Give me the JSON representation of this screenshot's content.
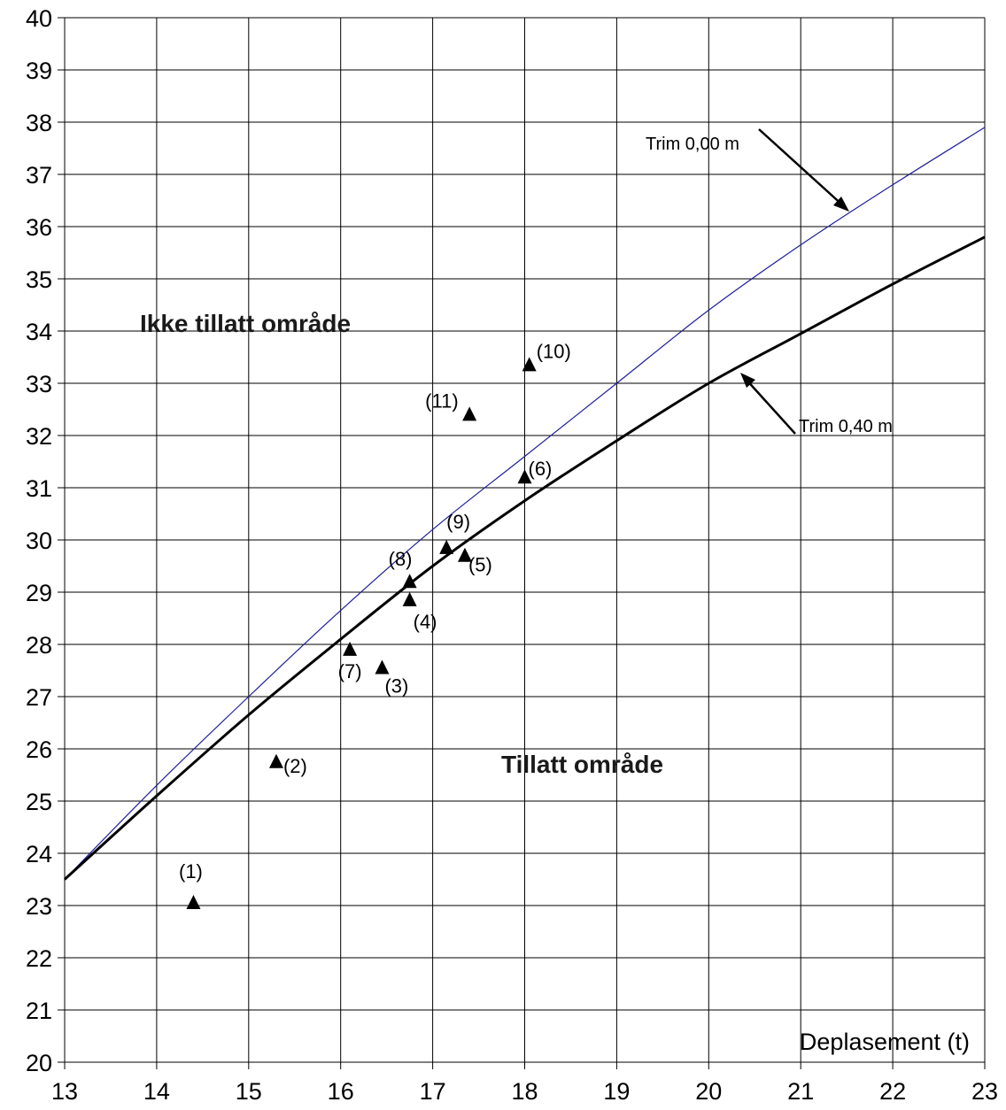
{
  "chart_data": {
    "type": "line",
    "xlabel": "Deplasement (t)",
    "ylabel": "",
    "xlim": [
      13,
      23
    ],
    "ylim": [
      20,
      40
    ],
    "grid": true,
    "x_ticks": [
      "13",
      "14",
      "15",
      "16",
      "17",
      "18",
      "19",
      "20",
      "21",
      "22",
      "23"
    ],
    "y_ticks": [
      "20",
      "21",
      "22",
      "23",
      "24",
      "25",
      "26",
      "27",
      "28",
      "29",
      "30",
      "31",
      "32",
      "33",
      "34",
      "35",
      "36",
      "37",
      "38",
      "39",
      "40"
    ],
    "series": [
      {
        "name": "Trim 0,00 m",
        "color": "#1f1f9a",
        "points": [
          [
            13,
            23.5
          ],
          [
            14,
            25.3
          ],
          [
            15,
            27.0
          ],
          [
            16,
            28.65
          ],
          [
            17,
            30.2
          ],
          [
            18,
            31.6
          ],
          [
            19,
            33.0
          ],
          [
            20,
            34.4
          ],
          [
            21,
            35.65
          ],
          [
            22,
            36.8
          ],
          [
            23,
            37.9
          ]
        ]
      },
      {
        "name": "Trim 0,40 m",
        "color": "#000000",
        "points": [
          [
            13,
            23.5
          ],
          [
            14,
            25.1
          ],
          [
            15,
            26.65
          ],
          [
            16,
            28.1
          ],
          [
            17,
            29.5
          ],
          [
            18,
            30.75
          ],
          [
            19,
            31.9
          ],
          [
            20,
            33.0
          ],
          [
            21,
            33.95
          ],
          [
            22,
            34.9
          ],
          [
            23,
            35.8
          ]
        ]
      }
    ],
    "markers": [
      {
        "label": "(1)",
        "x": 14.4,
        "y": 23.05
      },
      {
        "label": "(2)",
        "x": 15.3,
        "y": 25.75
      },
      {
        "label": "(3)",
        "x": 16.45,
        "y": 27.55
      },
      {
        "label": "(4)",
        "x": 16.75,
        "y": 28.85
      },
      {
        "label": "(5)",
        "x": 17.35,
        "y": 29.7
      },
      {
        "label": "(6)",
        "x": 18.0,
        "y": 31.2
      },
      {
        "label": "(7)",
        "x": 16.1,
        "y": 27.9
      },
      {
        "label": "(8)",
        "x": 16.75,
        "y": 29.2
      },
      {
        "label": "(9)",
        "x": 17.15,
        "y": 29.85
      },
      {
        "label": "(10)",
        "x": 18.05,
        "y": 33.35
      },
      {
        "label": "(11)",
        "x": 17.4,
        "y": 32.4
      }
    ],
    "annotations": {
      "region_above": "Ikke tillatt område",
      "region_below": "Tillatt område",
      "trim_000": "Trim 0,00 m",
      "trim_040": "Trim 0,40 m"
    }
  }
}
